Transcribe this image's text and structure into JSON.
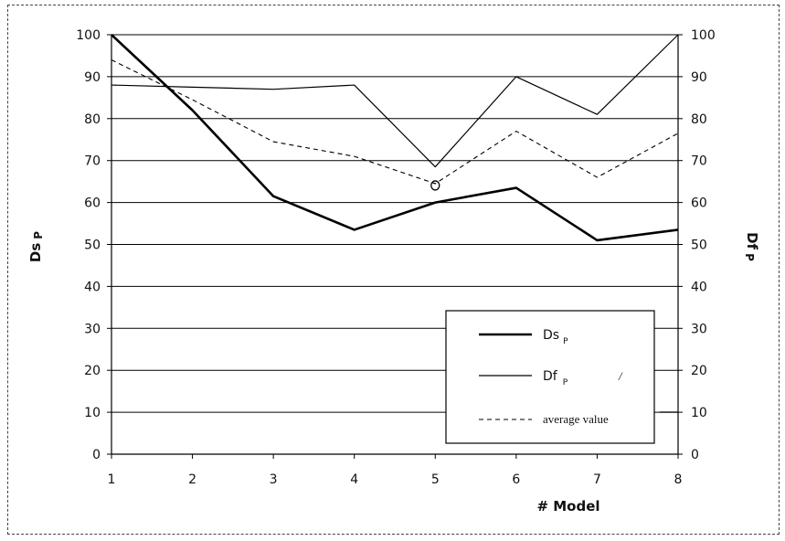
{
  "chart_data": {
    "type": "line",
    "categories": [
      "1",
      "2",
      "3",
      "4",
      "5",
      "6",
      "7",
      "8"
    ],
    "x": [
      1,
      2,
      3,
      4,
      5,
      6,
      7,
      8
    ],
    "series": [
      {
        "name": "Ds",
        "name_sub": "P",
        "values": [
          100,
          82,
          61.5,
          53.5,
          60,
          63.5,
          51,
          53.5
        ],
        "style": "thick-solid",
        "color": "#000000"
      },
      {
        "name": "Df",
        "name_sub": "P",
        "values": [
          88,
          87.5,
          87,
          88,
          68.5,
          90,
          81,
          100
        ],
        "style": "thin-solid",
        "color": "#000000"
      },
      {
        "name": "average value",
        "values": [
          94,
          84.5,
          74.5,
          71,
          64.5,
          77,
          66,
          76.5
        ],
        "style": "dashed",
        "color": "#000000"
      }
    ],
    "left_axis_label": "Ds",
    "left_axis_label_sub": "P",
    "right_axis_label": "Df",
    "right_axis_label_sub": "P",
    "xlabel": "# Model",
    "ylim": [
      0,
      100
    ],
    "y_ticks": [
      "0",
      "10",
      "20",
      "30",
      "40",
      "50",
      "60",
      "70",
      "80",
      "90",
      "100"
    ],
    "grid": "horizontal",
    "legend_position": "lower-right",
    "annotations": [
      {
        "text": "o",
        "x": 5,
        "y": 64.5
      },
      {
        "text": "/",
        "near": "legend-Df"
      }
    ]
  }
}
